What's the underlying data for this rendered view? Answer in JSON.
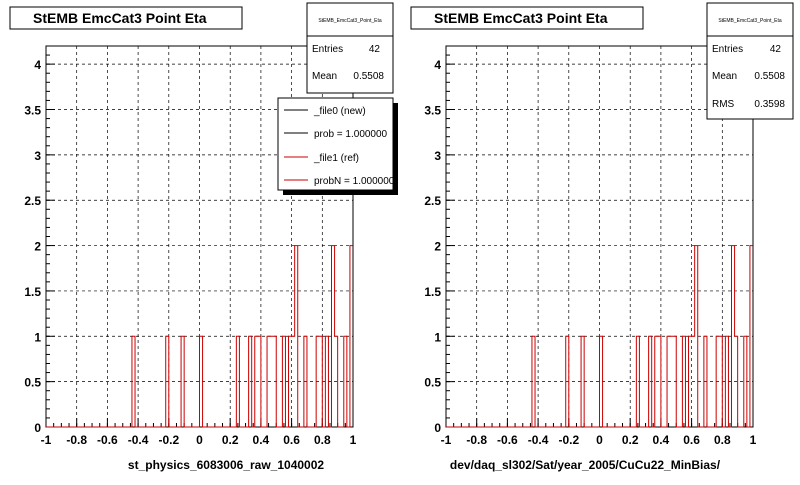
{
  "footer_text": "",
  "chart_data": [
    {
      "type": "bar",
      "title": "StEMB EmcCat3 Point Eta",
      "xlabel": "st_physics_6083006_raw_1040002",
      "ylabel": "",
      "xlim": [
        -1,
        1
      ],
      "ylim": [
        0,
        4.2
      ],
      "grid": true,
      "x_ticks": [
        "-1",
        "-0.8",
        "-0.6",
        "-0.4",
        "-0.2",
        "0",
        "0.2",
        "0.4",
        "0.6",
        "0.8",
        "1"
      ],
      "y_ticks": [
        "0",
        "0.5",
        "1",
        "1.5",
        "2",
        "2.5",
        "3",
        "3.5",
        "4"
      ],
      "bins": 100,
      "bin_lo": -1,
      "bin_hi": 1,
      "color": "#cc0000",
      "values": [
        0,
        0,
        0,
        0,
        0,
        0,
        0,
        0,
        0,
        0,
        0,
        0,
        0,
        0,
        0,
        0,
        0,
        0,
        0,
        0,
        0,
        0,
        0,
        0,
        0,
        0,
        0,
        0,
        1,
        0,
        0,
        0,
        0,
        0,
        0,
        0,
        0,
        0,
        0,
        1,
        0,
        0,
        0,
        0,
        1,
        0,
        0,
        0,
        0,
        0,
        1,
        0,
        0,
        0,
        0,
        0,
        0,
        0,
        0,
        0,
        0,
        0,
        1,
        0,
        0,
        0,
        1,
        0,
        1,
        1,
        0,
        0,
        1,
        1,
        1,
        0,
        0,
        1,
        0,
        1,
        1,
        2,
        0,
        0,
        1,
        0,
        0,
        0,
        1,
        1,
        0,
        1,
        0,
        2,
        1,
        0,
        0,
        1,
        0,
        2
      ],
      "stats": {
        "name": "StEMB_EmcCat3_Point_Eta",
        "entries_label": "Entries",
        "entries": "42",
        "mean_label": "Mean",
        "mean": "0.5508"
      },
      "legend": {
        "placement": "top-right",
        "items": [
          {
            "label": "_file0 (new)",
            "color": "#000000"
          },
          {
            "label": "prob = 1.000000",
            "color": "#000000"
          },
          {
            "label": "_file1 (ref)",
            "color": "#cc0000"
          },
          {
            "label": "probN = 1.000000",
            "color": "#cc0000"
          }
        ]
      }
    },
    {
      "type": "bar",
      "title": "StEMB EmcCat3 Point Eta",
      "xlabel": "dev/daq_sl302/Sat/year_2005/CuCu22_MinBias/",
      "ylabel": "",
      "xlim": [
        -1,
        1
      ],
      "ylim": [
        0,
        4.2
      ],
      "grid": true,
      "x_ticks": [
        "-1",
        "-0.8",
        "-0.6",
        "-0.4",
        "-0.2",
        "0",
        "0.2",
        "0.4",
        "0.6",
        "0.8",
        "1"
      ],
      "y_ticks": [
        "0",
        "0.5",
        "1",
        "1.5",
        "2",
        "2.5",
        "3",
        "3.5",
        "4"
      ],
      "bins": 100,
      "bin_lo": -1,
      "bin_hi": 1,
      "color": "#cc0000",
      "values": [
        0,
        0,
        0,
        0,
        0,
        0,
        0,
        0,
        0,
        0,
        0,
        0,
        0,
        0,
        0,
        0,
        0,
        0,
        0,
        0,
        0,
        0,
        0,
        0,
        0,
        0,
        0,
        0,
        1,
        0,
        0,
        0,
        0,
        0,
        0,
        0,
        0,
        0,
        0,
        1,
        0,
        0,
        0,
        0,
        1,
        0,
        0,
        0,
        0,
        0,
        1,
        0,
        0,
        0,
        0,
        0,
        0,
        0,
        0,
        0,
        0,
        0,
        1,
        0,
        0,
        0,
        1,
        0,
        1,
        1,
        0,
        0,
        1,
        1,
        1,
        0,
        0,
        1,
        0,
        1,
        1,
        2,
        0,
        0,
        1,
        0,
        0,
        0,
        1,
        1,
        0,
        1,
        0,
        2,
        1,
        0,
        0,
        1,
        0,
        2
      ],
      "stats": {
        "name": "StEMB_EmcCat3_Point_Eta",
        "entries_label": "Entries",
        "entries": "42",
        "mean_label": "Mean",
        "mean": "0.5508",
        "rms_label": "RMS",
        "rms": "0.3598"
      }
    }
  ]
}
